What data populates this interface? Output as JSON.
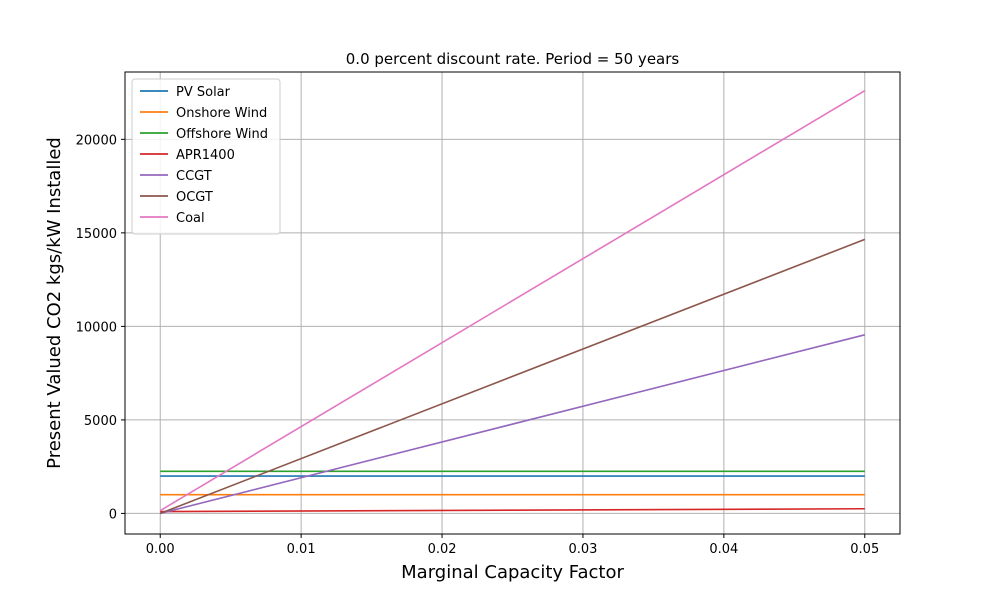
{
  "chart_data": {
    "type": "line",
    "title": "0.0 percent discount rate. Period = 50 years",
    "xlabel": "Marginal Capacity Factor",
    "ylabel": "Present Valued CO2 kgs/kW Installed",
    "xlim": [
      -0.0025,
      0.0525
    ],
    "ylim": [
      -1100,
      23600
    ],
    "xticks": [
      0.0,
      0.01,
      0.02,
      0.03,
      0.04,
      0.05
    ],
    "xtick_labels": [
      "0.00",
      "0.01",
      "0.02",
      "0.03",
      "0.04",
      "0.05"
    ],
    "yticks": [
      0,
      5000,
      10000,
      15000,
      20000
    ],
    "ytick_labels": [
      "0",
      "5000",
      "10000",
      "15000",
      "20000"
    ],
    "grid": true,
    "legend_position": "top-left",
    "x": [
      0.0,
      0.05
    ],
    "series": [
      {
        "name": "PV Solar",
        "color": "#1f77b4",
        "values": [
          2000,
          2000
        ]
      },
      {
        "name": "Onshore Wind",
        "color": "#ff7f0e",
        "values": [
          1000,
          1000
        ]
      },
      {
        "name": "Offshore Wind",
        "color": "#2ca02c",
        "values": [
          2250,
          2250
        ]
      },
      {
        "name": "APR1400",
        "color": "#d62728",
        "values": [
          100,
          250
        ]
      },
      {
        "name": "CCGT",
        "color": "#9467bd",
        "values": [
          0,
          9550
        ]
      },
      {
        "name": "OCGT",
        "color": "#8c564b",
        "values": [
          0,
          14650
        ]
      },
      {
        "name": "Coal",
        "color": "#e377c2",
        "values": [
          150,
          22600
        ]
      }
    ]
  }
}
